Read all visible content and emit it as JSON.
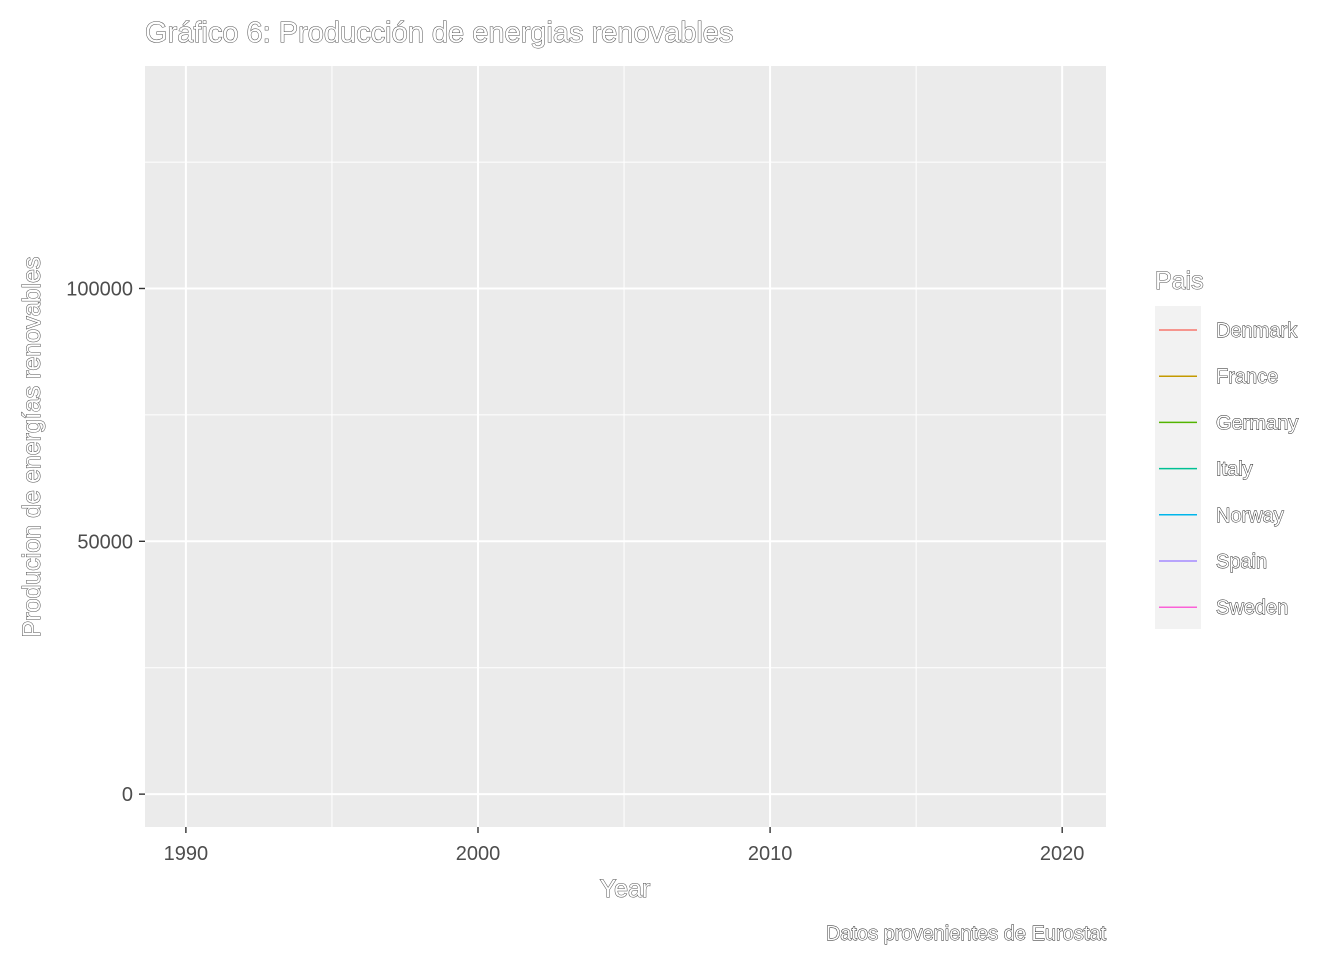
{
  "chart_data": {
    "type": "line",
    "title": "Gráfico 6: Producción de energias renovables",
    "xlabel": "Year",
    "ylabel": "Producion de energías renovables",
    "caption": "Datos provenientes de Eurostat",
    "xlim": [
      1988.6,
      2021.5
    ],
    "ylim": [
      -6500,
      144000
    ],
    "x_ticks": [
      1990,
      2000,
      2010,
      2020
    ],
    "x_minor": [
      1995,
      2005,
      2015
    ],
    "y_ticks": [
      0,
      50000,
      100000
    ],
    "y_tick_labels": [
      "0",
      "50000",
      "100000"
    ],
    "y_minor": [
      25000,
      75000,
      125000
    ],
    "grid": true,
    "legend": {
      "title": "Pais",
      "position": "right",
      "entries": [
        {
          "name": "Denmark",
          "color": "#F8766D"
        },
        {
          "name": "France",
          "color": "#C49A00"
        },
        {
          "name": "Germany",
          "color": "#53B400"
        },
        {
          "name": "Italy",
          "color": "#00C094"
        },
        {
          "name": "Norway",
          "color": "#00B6EB"
        },
        {
          "name": "Spain",
          "color": "#A58AFF"
        },
        {
          "name": "Sweden",
          "color": "#FB61D7"
        }
      ]
    },
    "series": [
      {
        "name": "Denmark",
        "x": [],
        "y": []
      },
      {
        "name": "France",
        "x": [],
        "y": []
      },
      {
        "name": "Germany",
        "x": [],
        "y": []
      },
      {
        "name": "Italy",
        "x": [],
        "y": []
      },
      {
        "name": "Norway",
        "x": [],
        "y": []
      },
      {
        "name": "Spain",
        "x": [],
        "y": []
      },
      {
        "name": "Sweden",
        "x": [],
        "y": []
      }
    ],
    "colors": {
      "panel_bg": "#EBEBEB",
      "grid": "#FFFFFF",
      "legend_key_bg": "#F2F2F2",
      "tick_text": "#4D4D4D"
    }
  }
}
